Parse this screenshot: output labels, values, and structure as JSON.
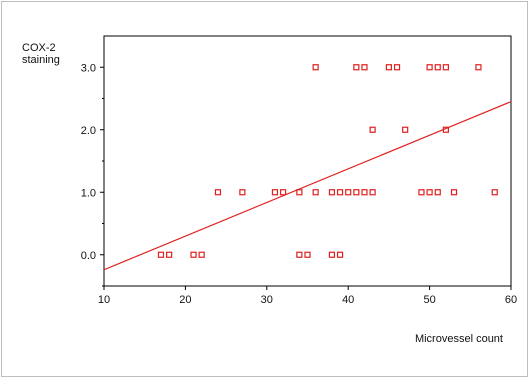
{
  "chart_data": {
    "type": "scatter",
    "title": "",
    "xlabel": "Microvessel count",
    "ylabel_lines": [
      "COX-2",
      "staining"
    ],
    "xlim": [
      10,
      60
    ],
    "ylim": [
      -0.5,
      3.5
    ],
    "x_ticks": [
      10,
      20,
      30,
      40,
      50,
      60
    ],
    "y_ticks": [
      0.0,
      1.0,
      2.0,
      3.0
    ],
    "x_tick_labels": [
      "10",
      "20",
      "30",
      "40",
      "50",
      "60"
    ],
    "y_tick_labels": [
      "0.0",
      "1.0",
      "2.0",
      "3.0"
    ],
    "grid": false,
    "marker_color": "#e02020",
    "line_color": "#e02020",
    "series": [
      {
        "points": [
          [
            17,
            0
          ],
          [
            18,
            0
          ],
          [
            21,
            0
          ],
          [
            22,
            0
          ],
          [
            34,
            0
          ],
          [
            35,
            0
          ],
          [
            38,
            0
          ],
          [
            39,
            0
          ],
          [
            24,
            1
          ],
          [
            27,
            1
          ],
          [
            31,
            1
          ],
          [
            32,
            1
          ],
          [
            34,
            1
          ],
          [
            36,
            1
          ],
          [
            38,
            1
          ],
          [
            39,
            1
          ],
          [
            40,
            1
          ],
          [
            41,
            1
          ],
          [
            42,
            1
          ],
          [
            43,
            1
          ],
          [
            49,
            1
          ],
          [
            50,
            1
          ],
          [
            51,
            1
          ],
          [
            53,
            1
          ],
          [
            58,
            1
          ],
          [
            43,
            2
          ],
          [
            47,
            2
          ],
          [
            52,
            2
          ],
          [
            36,
            3
          ],
          [
            41,
            3
          ],
          [
            42,
            3
          ],
          [
            45,
            3
          ],
          [
            46,
            3
          ],
          [
            50,
            3
          ],
          [
            51,
            3
          ],
          [
            52,
            3
          ],
          [
            56,
            3
          ]
        ]
      }
    ],
    "fit_line": {
      "x": [
        10,
        60
      ],
      "y": [
        -0.24,
        2.45
      ]
    }
  }
}
